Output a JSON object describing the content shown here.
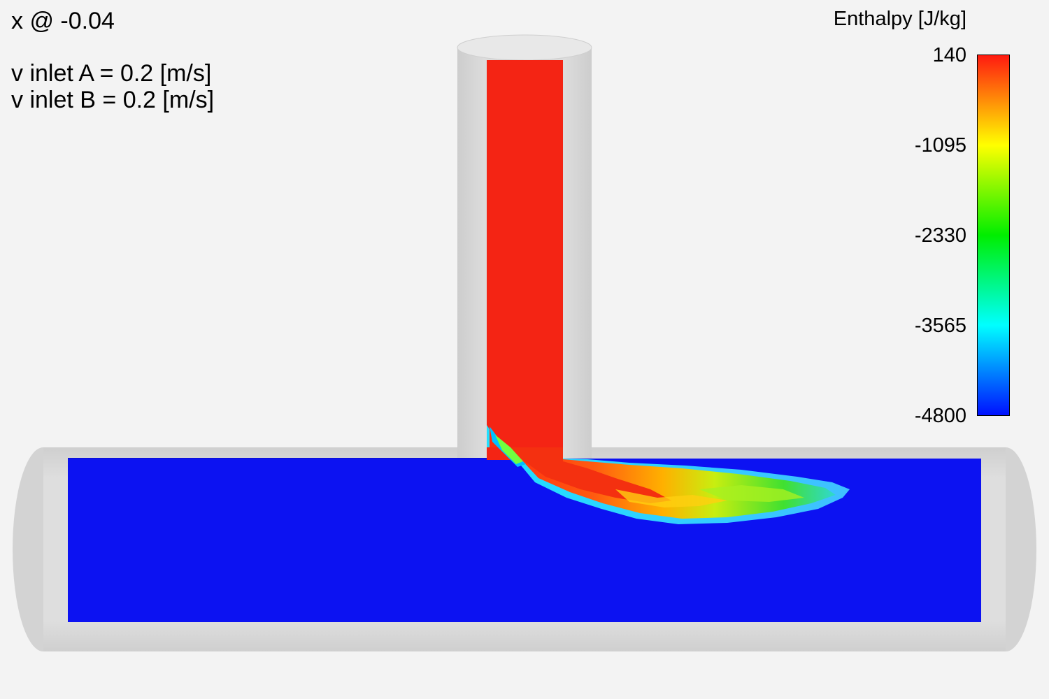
{
  "annotations": {
    "slice": "x @ -0.04",
    "inlet_a": "v inlet A = 0.2 [m/s]",
    "inlet_b": "v inlet B = 0.2 [m/s]"
  },
  "legend": {
    "title": "Enthalpy [J/kg]",
    "ticks": [
      "140",
      "-1095",
      "-2330",
      "-3565",
      "-4800"
    ],
    "colors": [
      "#ff1a10",
      "#ffff00",
      "#00ee00",
      "#00ffff",
      "#0010ff"
    ]
  },
  "field_colors": {
    "pipe_shell": "#d6d6d6",
    "hot_fluid": "#f42414",
    "cold_fluid": "#0c12f2"
  }
}
